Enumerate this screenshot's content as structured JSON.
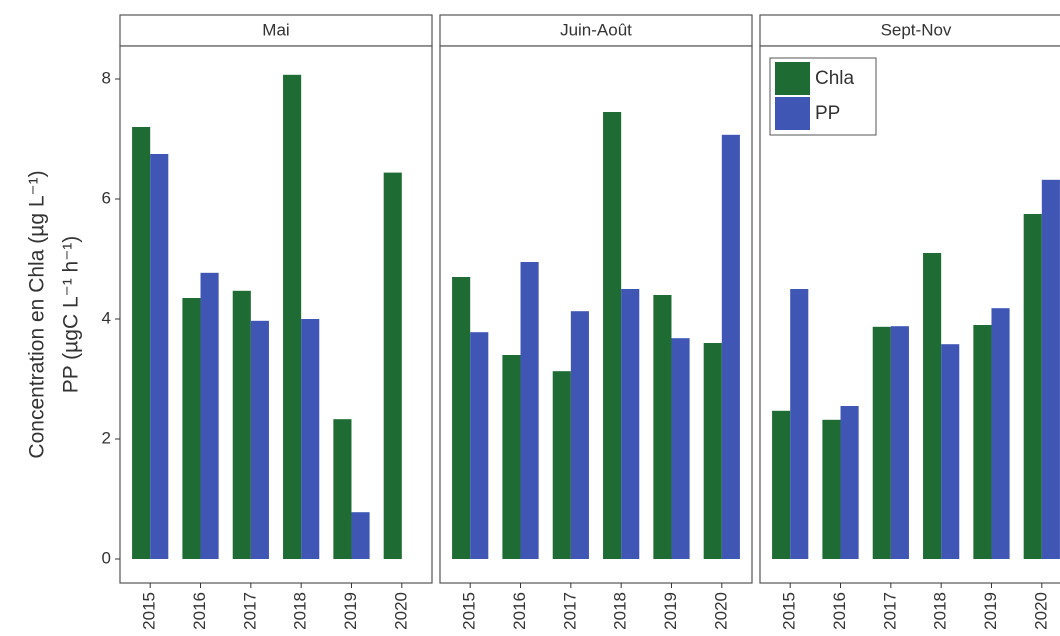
{
  "chart_data": [
    {
      "type": "bar",
      "title": "Mai",
      "y_label": [
        "Concentration en Chla (µg L⁻¹)",
        "PP (µgC L⁻¹ h⁻¹)"
      ],
      "categories": [
        "2015",
        "2016",
        "2017",
        "2018",
        "2019",
        "2020"
      ],
      "series": [
        {
          "color": "#1e6b34",
          "values": [
            7.2,
            4.35,
            4.47,
            8.07,
            2.33,
            6.44
          ]
        },
        {
          "color": "#3f56b5",
          "values": [
            6.75,
            4.77,
            3.97,
            4.0,
            0.78,
            null
          ]
        }
      ],
      "ylim": [
        -0.4,
        8.55
      ],
      "yticks": [
        0,
        2,
        4,
        6,
        8
      ]
    },
    {
      "type": "bar",
      "title": "Juin-Août",
      "categories": [
        "2015",
        "2016",
        "2017",
        "2018",
        "2019",
        "2020"
      ],
      "series": [
        {
          "color": "#1e6b34",
          "values": [
            4.7,
            3.4,
            3.13,
            7.45,
            4.4,
            3.6
          ]
        },
        {
          "color": "#3f56b5",
          "values": [
            3.78,
            4.95,
            4.13,
            4.5,
            3.68,
            7.07
          ]
        }
      ],
      "ylim": [
        -0.4,
        8.55
      ]
    },
    {
      "type": "bar",
      "title": "Sept-Nov",
      "categories": [
        "2015",
        "2016",
        "2017",
        "2018",
        "2019",
        "2020"
      ],
      "series": [
        {
          "name": "Chla",
          "color": "#1e6b34",
          "values": [
            2.47,
            2.32,
            3.87,
            5.1,
            3.9,
            5.75
          ]
        },
        {
          "name": "PP",
          "color": "#3f56b5",
          "values": [
            4.5,
            2.55,
            3.88,
            3.58,
            4.18,
            6.32
          ]
        }
      ],
      "ylim": [
        -0.4,
        8.55
      ],
      "legend": "upper left"
    }
  ]
}
